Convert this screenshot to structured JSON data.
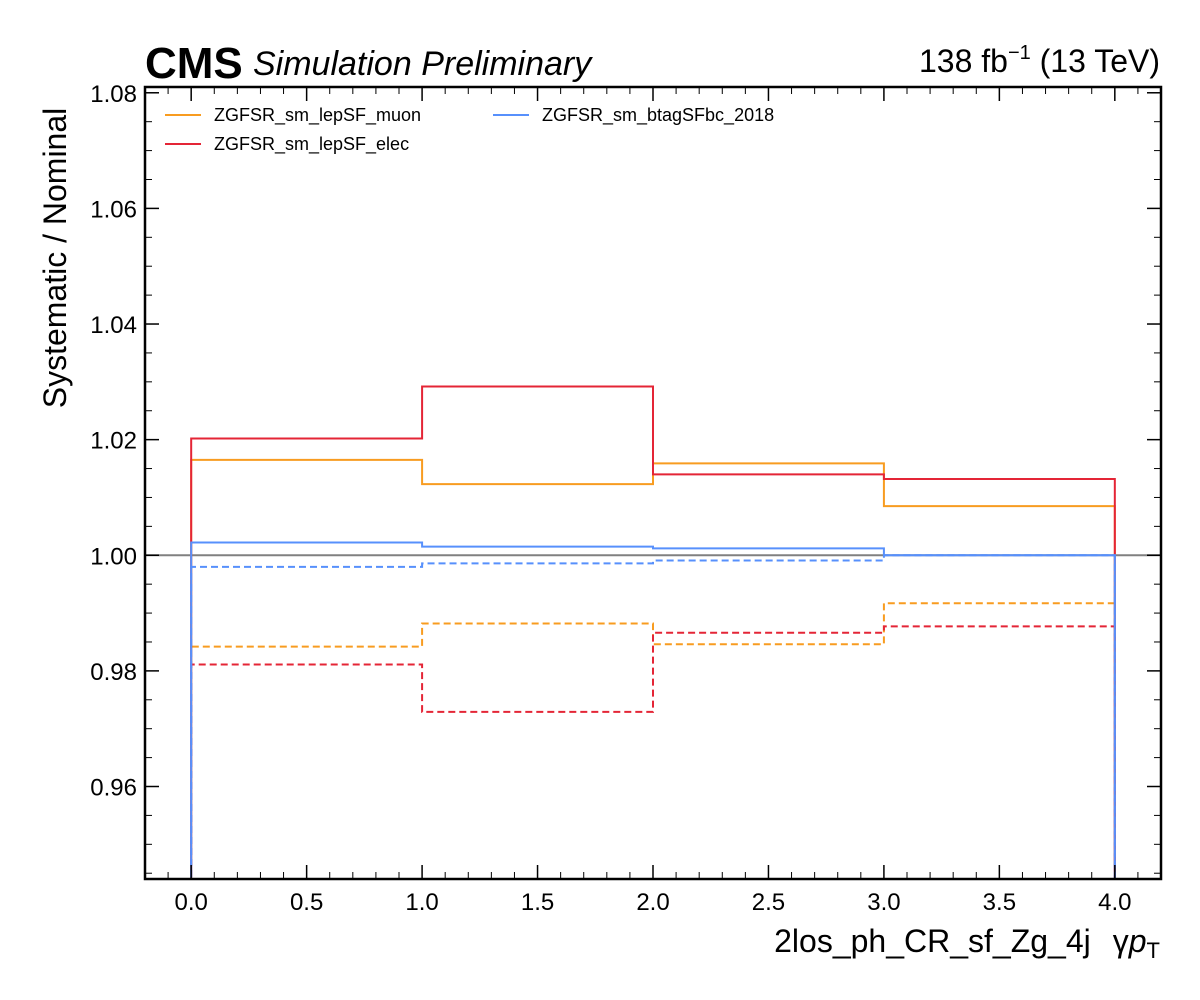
{
  "header": {
    "cms": "CMS",
    "subtitle": "Simulation Preliminary",
    "lumi_value": "138 fb",
    "lumi_exp": "−1",
    "lumi_energy": " (13 TeV)"
  },
  "colors": {
    "muon": "#f89c20",
    "elec": "#e42536",
    "btag": "#5790fc",
    "reference_line": "#808080"
  },
  "chart_data": {
    "type": "line",
    "drawstyle": "step",
    "xlabel_main": "2los_ph_CR_sf_Zg_4j",
    "xlabel_var_prefix": "γ",
    "xlabel_var": "p",
    "xlabel_var_sub": "T",
    "ylabel": "Systematic / Nominal",
    "xlim": [
      -0.2,
      4.2
    ],
    "ylim": [
      0.944,
      1.081
    ],
    "x_ticks": [
      0.0,
      0.5,
      1.0,
      1.5,
      2.0,
      2.5,
      3.0,
      3.5,
      4.0
    ],
    "x_tick_labels": [
      "0.0",
      "0.5",
      "1.0",
      "1.5",
      "2.0",
      "2.5",
      "3.0",
      "3.5",
      "4.0"
    ],
    "y_ticks": [
      0.96,
      0.98,
      1.0,
      1.02,
      1.04,
      1.06,
      1.08
    ],
    "y_tick_labels": [
      "0.96",
      "0.98",
      "1.00",
      "1.02",
      "1.04",
      "1.06",
      "1.08"
    ],
    "reference_y": 1.0,
    "bin_edges": [
      0,
      1,
      2,
      3,
      4
    ],
    "legend_position": "upper-left",
    "series": [
      {
        "name": "ZGFSR_sm_lepSF_muon",
        "color_key": "muon",
        "style": "solid",
        "values": [
          1.0165,
          1.0123,
          1.0159,
          1.0085
        ]
      },
      {
        "name": "ZGFSR_sm_lepSF_muon",
        "color_key": "muon",
        "style": "dashed",
        "legend": false,
        "values": [
          0.9842,
          0.9882,
          0.9846,
          0.9917
        ]
      },
      {
        "name": "ZGFSR_sm_lepSF_elec",
        "color_key": "elec",
        "style": "solid",
        "values": [
          1.0202,
          1.0292,
          1.014,
          1.0132
        ]
      },
      {
        "name": "ZGFSR_sm_lepSF_elec",
        "color_key": "elec",
        "style": "dashed",
        "legend": false,
        "values": [
          0.9811,
          0.9729,
          0.9866,
          0.9877
        ]
      },
      {
        "name": "ZGFSR_sm_btagSFbc_2018",
        "color_key": "btag",
        "style": "solid",
        "values": [
          1.0022,
          1.0015,
          1.0012,
          1.0
        ]
      },
      {
        "name": "ZGFSR_sm_btagSFbc_2018",
        "color_key": "btag",
        "style": "dashed",
        "legend": false,
        "values": [
          0.998,
          0.9986,
          0.9991,
          1.0
        ]
      }
    ]
  }
}
